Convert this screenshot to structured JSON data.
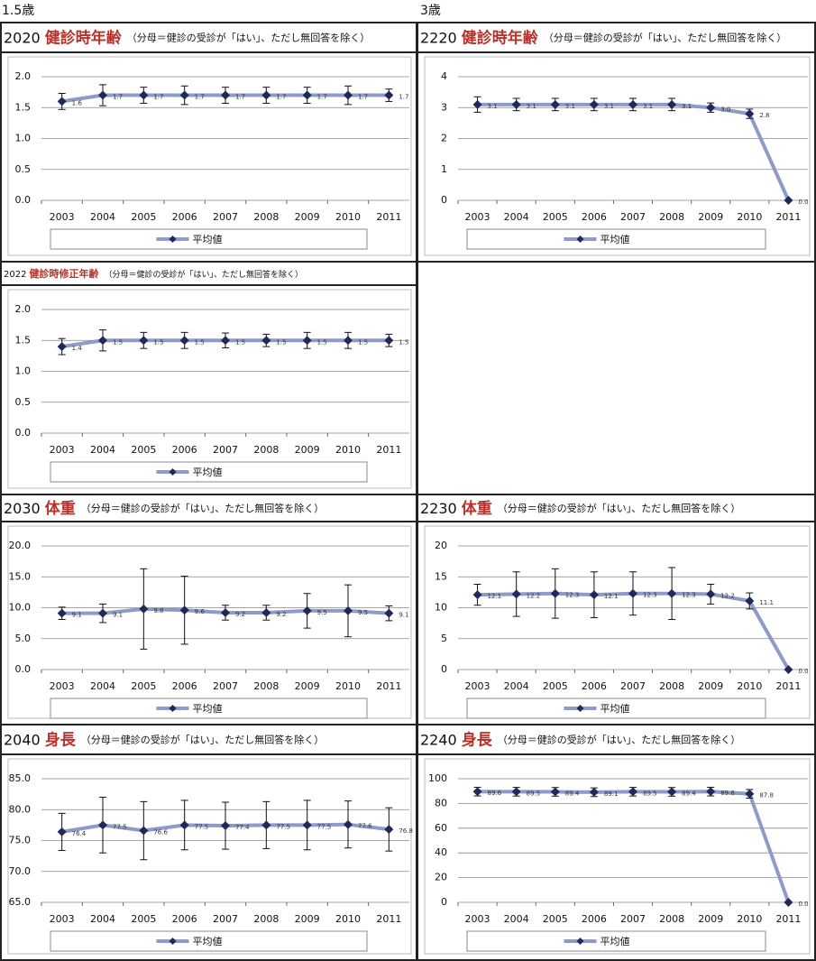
{
  "columns": [
    "1.5歳",
    "3歳"
  ],
  "chart_data": [
    {
      "type": "line",
      "code": "2020",
      "title": "健診時年齢",
      "subtitle": "（分母＝健診の受診が「はい」、ただし無回答を除く）",
      "categories": [
        "2003",
        "2004",
        "2005",
        "2006",
        "2007",
        "2008",
        "2009",
        "2010",
        "2011"
      ],
      "ylim": [
        0,
        2
      ],
      "yticks": [
        {
          "value": 0,
          "label": "0.0"
        },
        {
          "value": 0.5,
          "label": "0.5"
        },
        {
          "value": 1,
          "label": "1.0"
        },
        {
          "value": 1.5,
          "label": "1.5"
        },
        {
          "value": 2,
          "label": "2.0"
        }
      ],
      "grid": true,
      "series": [
        {
          "name": "平均値",
          "color": "#8e9ac8",
          "marker_color": "#1f2a5a",
          "values": [
            1.6,
            1.7,
            1.7,
            1.7,
            1.7,
            1.7,
            1.7,
            1.7,
            1.7
          ],
          "value_labels": [
            "1.6",
            "1.7",
            "1.7",
            "1.7",
            "1.7",
            "1.7",
            "1.7",
            "1.7",
            "1.7"
          ],
          "errors": [
            0.13,
            0.17,
            0.13,
            0.15,
            0.13,
            0.13,
            0.13,
            0.15,
            0.1
          ]
        }
      ]
    },
    {
      "type": "line",
      "code": "2220",
      "title": "健診時年齢",
      "subtitle": "（分母＝健診の受診が「はい」、ただし無回答を除く）",
      "categories": [
        "2003",
        "2004",
        "2005",
        "2006",
        "2007",
        "2008",
        "2009",
        "2010",
        "2011"
      ],
      "ylim": [
        0,
        4
      ],
      "yticks": [
        0,
        1,
        2,
        3,
        4
      ],
      "grid": true,
      "series": [
        {
          "name": "平均値",
          "color": "#8e9ac8",
          "marker_color": "#1f2a5a",
          "values": [
            3.1,
            3.1,
            3.1,
            3.1,
            3.1,
            3.1,
            3.0,
            2.8,
            0
          ],
          "value_labels": [
            "3.1",
            "3.1",
            "3.1",
            "3.1",
            "3.1",
            "3.1",
            "3.0",
            "2.8",
            "0.0"
          ],
          "errors": [
            0.25,
            0.2,
            0.2,
            0.2,
            0.2,
            0.2,
            0.15,
            0.15,
            0
          ]
        }
      ]
    },
    {
      "type": "line",
      "code": "2022",
      "title": "健診時修正年齢",
      "subtitle": "（分母＝健診の受診が「はい」、ただし無回答を除く）",
      "categories": [
        "2003",
        "2004",
        "2005",
        "2006",
        "2007",
        "2008",
        "2009",
        "2010",
        "2011"
      ],
      "ylim": [
        0,
        2
      ],
      "yticks": [
        {
          "value": 0,
          "label": "0.0"
        },
        {
          "value": 0.5,
          "label": "0.5"
        },
        {
          "value": 1,
          "label": "1.0"
        },
        {
          "value": 1.5,
          "label": "1.5"
        },
        {
          "value": 2,
          "label": "2.0"
        }
      ],
      "grid": true,
      "series": [
        {
          "name": "平均値",
          "color": "#8e9ac8",
          "marker_color": "#1f2a5a",
          "values": [
            1.4,
            1.5,
            1.5,
            1.5,
            1.5,
            1.5,
            1.5,
            1.5,
            1.5
          ],
          "value_labels": [
            "1.4",
            "1.5",
            "1.5",
            "1.5",
            "1.5",
            "1.5",
            "1.5",
            "1.5",
            "1.5"
          ],
          "errors": [
            0.13,
            0.17,
            0.13,
            0.13,
            0.12,
            0.1,
            0.13,
            0.13,
            0.1
          ]
        }
      ]
    },
    {
      "type": "line",
      "code": "2030",
      "title": "体重",
      "subtitle": "（分母＝健診の受診が「はい」、ただし無回答を除く）",
      "categories": [
        "2003",
        "2004",
        "2005",
        "2006",
        "2007",
        "2008",
        "2009",
        "2010",
        "2011"
      ],
      "ylim": [
        0,
        20
      ],
      "yticks": [
        {
          "value": 0,
          "label": "0.0"
        },
        {
          "value": 5,
          "label": "5.0"
        },
        {
          "value": 10,
          "label": "10.0"
        },
        {
          "value": 15,
          "label": "15.0"
        },
        {
          "value": 20,
          "label": "20.0"
        }
      ],
      "grid": true,
      "series": [
        {
          "name": "平均値",
          "color": "#8e9ac8",
          "marker_color": "#1f2a5a",
          "values": [
            9.1,
            9.1,
            9.8,
            9.6,
            9.2,
            9.2,
            9.5,
            9.5,
            9.1
          ],
          "value_labels": [
            "9.1",
            "9.1",
            "9.8",
            "9.6",
            "9.2",
            "9.2",
            "9.5",
            "9.5",
            "9.1"
          ],
          "errors": [
            1,
            1.5,
            6.5,
            5.5,
            1.2,
            1.2,
            2.8,
            4.2,
            1.2
          ]
        }
      ]
    },
    {
      "type": "line",
      "code": "2230",
      "title": "体重",
      "subtitle": "（分母＝健診の受診が「はい」、ただし無回答を除く）",
      "categories": [
        "2003",
        "2004",
        "2005",
        "2006",
        "2007",
        "2008",
        "2009",
        "2010",
        "2011"
      ],
      "ylim": [
        0,
        20
      ],
      "yticks": [
        0,
        5,
        10,
        15,
        20
      ],
      "grid": true,
      "series": [
        {
          "name": "平均値",
          "color": "#8e9ac8",
          "marker_color": "#1f2a5a",
          "values": [
            12.1,
            12.2,
            12.3,
            12.1,
            12.3,
            12.3,
            12.2,
            11.1,
            0
          ],
          "value_labels": [
            "12.1",
            "12.2",
            "12.3",
            "12.1",
            "12.3",
            "12.3",
            "12.2",
            "11.1",
            "0.0"
          ],
          "errors": [
            1.7,
            3.6,
            4.0,
            3.7,
            3.5,
            4.2,
            1.6,
            1.3,
            0
          ]
        }
      ]
    },
    {
      "type": "line",
      "code": "2040",
      "title": "身長",
      "subtitle": "（分母＝健診の受診が「はい」、ただし無回答を除く）",
      "categories": [
        "2003",
        "2004",
        "2005",
        "2006",
        "2007",
        "2008",
        "2009",
        "2010",
        "2011"
      ],
      "ylim": [
        65,
        85
      ],
      "yticks": [
        {
          "value": 65,
          "label": "65.0"
        },
        {
          "value": 70,
          "label": "70.0"
        },
        {
          "value": 75,
          "label": "75.0"
        },
        {
          "value": 80,
          "label": "80.0"
        },
        {
          "value": 85,
          "label": "85.0"
        }
      ],
      "grid": true,
      "series": [
        {
          "name": "平均値",
          "color": "#8e9ac8",
          "marker_color": "#1f2a5a",
          "values": [
            76.4,
            77.5,
            76.6,
            77.5,
            77.4,
            77.5,
            77.5,
            77.6,
            76.8
          ],
          "value_labels": [
            "76.4",
            "77.5",
            "76.6",
            "77.5",
            "77.4",
            "77.5",
            "77.5",
            "77.6",
            "76.8"
          ],
          "errors": [
            3,
            4.5,
            4.7,
            4,
            3.8,
            3.8,
            4,
            3.8,
            3.5
          ]
        }
      ]
    },
    {
      "type": "line",
      "code": "2240",
      "title": "身長",
      "subtitle": "（分母＝健診の受診が「はい」、ただし無回答を除く）",
      "categories": [
        "2003",
        "2004",
        "2005",
        "2006",
        "2007",
        "2008",
        "2009",
        "2010",
        "2011"
      ],
      "ylim": [
        0,
        100
      ],
      "yticks": [
        0,
        20,
        40,
        60,
        80,
        100
      ],
      "grid": true,
      "series": [
        {
          "name": "平均値",
          "color": "#8e9ac8",
          "marker_color": "#1f2a5a",
          "values": [
            89.6,
            89.5,
            89.4,
            89.1,
            89.5,
            89.4,
            89.6,
            87.8,
            0
          ],
          "value_labels": [
            "89.6",
            "89.5",
            "89.4",
            "89.1",
            "89.5",
            "89.4",
            "89.6",
            "87.8",
            "0.0"
          ],
          "errors": [
            3.5,
            3.5,
            3.5,
            3.5,
            3.5,
            3.5,
            3.5,
            3.5,
            0
          ]
        }
      ]
    }
  ]
}
